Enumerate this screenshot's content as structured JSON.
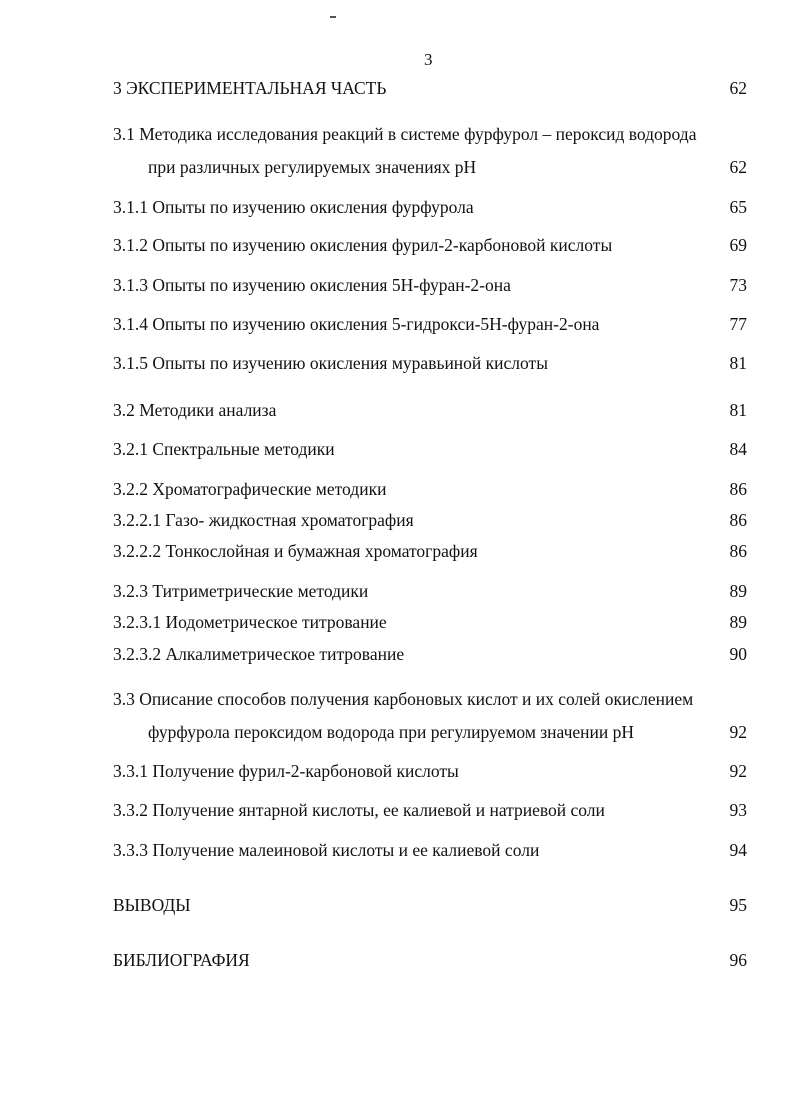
{
  "page_number": "3",
  "toc": [
    {
      "title": "3 ЭКСПЕРИМЕНТАЛЬНАЯ ЧАСТЬ",
      "page": "62"
    },
    {
      "title": "3.1 Методика исследования реакций в системе фурфурол – пероксид водорода",
      "page": ""
    },
    {
      "title": "при различных регулируемых значениях pH",
      "page": "62"
    },
    {
      "title": "3.1.1 Опыты по изучению окисления фурфурола",
      "page": "65"
    },
    {
      "title": "3.1.2 Опыты по изучению окисления фурил-2-карбоновой кислоты",
      "page": "69"
    },
    {
      "title": "3.1.3 Опыты по изучению окисления 5Н-фуран-2-она",
      "page": "73"
    },
    {
      "title": "3.1.4 Опыты по изучению окисления 5-гидрокси-5Н-фуран-2-она",
      "page": "77"
    },
    {
      "title": "3.1.5 Опыты по изучению окисления муравьиной кислоты",
      "page": "81"
    },
    {
      "title": "3.2 Методики анализа",
      "page": "81"
    },
    {
      "title": "3.2.1 Спектральные методики",
      "page": "84"
    },
    {
      "title": "3.2.2 Хроматографические методики",
      "page": "86"
    },
    {
      "title": "3.2.2.1 Газо- жидкостная хроматография",
      "page": "86"
    },
    {
      "title": "3.2.2.2 Тонкослойная и бумажная хроматография",
      "page": "86"
    },
    {
      "title": "3.2.3 Титриметрические методики",
      "page": "89"
    },
    {
      "title": "3.2.3.1 Иодометрическое титрование",
      "page": "89"
    },
    {
      "title": "3.2.3.2 Алкалиметрическое титрование",
      "page": "90"
    },
    {
      "title": "3.3 Описание способов получения карбоновых кислот и их солей окислением",
      "page": ""
    },
    {
      "title": "фурфурола пероксидом водорода при регулируемом значении pH",
      "page": "92"
    },
    {
      "title": "3.3.1 Получение фурил-2-карбоновой кислоты",
      "page": "92"
    },
    {
      "title": "3.3.2 Получение янтарной кислоты, ее калиевой и натриевой соли",
      "page": "93"
    },
    {
      "title": "3.3.3 Получение малеиновой кислоты и ее калиевой соли",
      "page": "94"
    },
    {
      "title": "ВЫВОДЫ",
      "page": "95"
    },
    {
      "title": "БИБЛИОГРАФИЯ",
      "page": "96"
    }
  ]
}
